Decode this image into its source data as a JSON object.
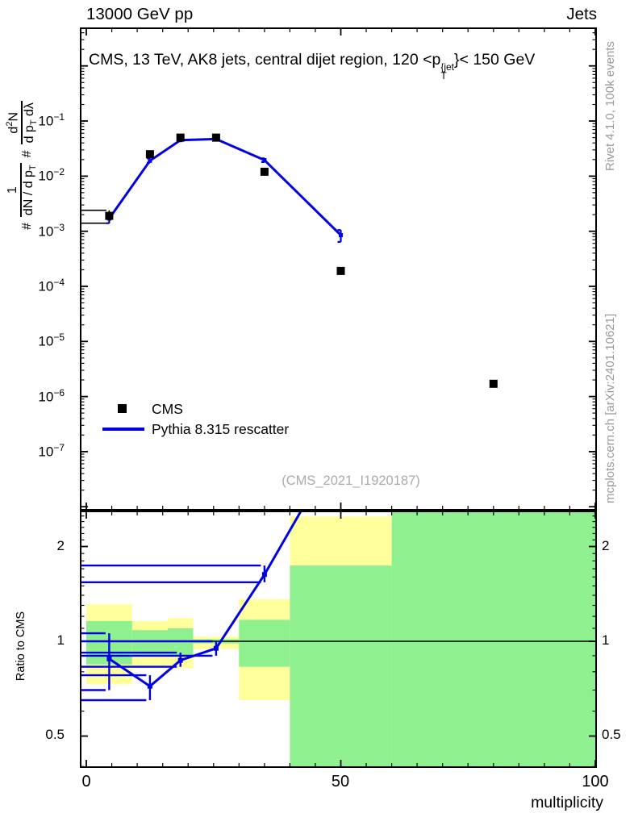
{
  "header": {
    "left": "13000 GeV pp",
    "right": "Jets"
  },
  "title": {
    "pre": "CMS, 13 TeV, AK8 jets, central dijet region, 120 <p",
    "sup": "{jet",
    "sub": "T",
    "post": "}< 150 GeV"
  },
  "ylabel": {
    "hash1": "#",
    "frac1_num": "1",
    "frac1_den_pre": "dN / d p",
    "frac1_den_sub": "T",
    "hash2": "#",
    "frac2_num_pre": "d",
    "frac2_num_sup": "2",
    "frac2_num_post": "N",
    "frac2_den_pre": "d p",
    "frac2_den_sub": "T",
    "frac2_den_post": " dλ"
  },
  "legend": {
    "entries": [
      {
        "marker": "square",
        "label": "CMS"
      },
      {
        "marker": "line",
        "label": "Pythia 8.315 rescatter"
      }
    ]
  },
  "watermark": "(CMS_2021_I1920187)",
  "side_notes": {
    "top_right": "Rivet 4.1.0,  100k events",
    "bottom_right": "mcplots.cern.ch [arXiv:2401.10621]"
  },
  "ratio_label": "Ratio to CMS",
  "xlabel": "multiplicity",
  "colors": {
    "mc_blue": "#0000e6",
    "band_yellow": "#ffff9c",
    "band_green": "#8ef08e",
    "gray_text": "#999999",
    "marker_black": "#000000"
  },
  "chart_data": {
    "type": "scatter+line with ratio panel",
    "title": "CMS, 13 TeV, AK8 jets, central dijet region, 120 < pT{jet} < 150 GeV",
    "xlabel": "multiplicity",
    "x_range": [
      -1.27,
      100.32
    ],
    "x_major_ticks": [
      0,
      50,
      100
    ],
    "x_tick_labels": [
      "0",
      "50",
      "100"
    ],
    "x_minor_step": 5,
    "main": {
      "yscale": "log",
      "y_range": [
        8.5e-09,
        5.0
      ],
      "y_decade_label_exponents": [
        -1,
        -2,
        -3,
        -4,
        -5,
        -6,
        -7
      ],
      "data_series": {
        "name": "CMS",
        "x": [
          4.5,
          12.5,
          18.5,
          25.5,
          35,
          50,
          80
        ],
        "y": [
          0.0019,
          0.025,
          0.05,
          0.05,
          0.012,
          0.00019,
          1.7e-06
        ],
        "yerr_lo": [
          0.0014,
          null,
          null,
          null,
          null,
          null,
          null
        ],
        "yerr_hi": [
          0.0024,
          null,
          null,
          null,
          null,
          null,
          null
        ]
      },
      "mc_series": {
        "name": "Pythia 8.315 rescatter",
        "x": [
          4.5,
          12.5,
          18.5,
          25.5,
          35,
          50
        ],
        "y": [
          0.0017,
          0.019,
          0.045,
          0.047,
          0.0195,
          0.00085
        ],
        "yerr_lo": [
          0.0014,
          0.0175,
          0.043,
          0.045,
          0.018,
          0.00064
        ],
        "yerr_hi": [
          0.0021,
          0.021,
          0.047,
          0.049,
          0.021,
          0.00105
        ]
      }
    },
    "ratio": {
      "yscale": "log",
      "y_range": [
        0.396,
        2.601
      ],
      "y_major_ticks": [
        0.5,
        1,
        2
      ],
      "y_tick_labels": [
        "0.5",
        "1",
        "2"
      ],
      "minor_tick_range": [
        0.4,
        2.6
      ],
      "minor_tick_step": 0.1,
      "reference_line": 1,
      "line": {
        "x": [
          4.5,
          12.5,
          18.5,
          25.5,
          35,
          50
        ],
        "y": [
          0.88,
          0.72,
          0.87,
          0.95,
          1.63,
          4.3
        ],
        "err_lo": [
          0.7,
          0.65,
          0.83,
          0.9,
          1.54,
          3.9
        ],
        "err_hi": [
          1.06,
          0.78,
          0.92,
          1.0,
          1.74,
          4.8
        ]
      },
      "bands": [
        {
          "x0": 0,
          "x1": 9,
          "yellow": [
            0.73,
            1.31
          ],
          "green": [
            0.845,
            1.16
          ]
        },
        {
          "x0": 9,
          "x1": 16,
          "yellow": [
            0.82,
            1.16
          ],
          "green": [
            0.9,
            1.085
          ]
        },
        {
          "x0": 16,
          "x1": 21,
          "yellow": [
            0.82,
            1.185
          ],
          "green": [
            0.9,
            1.1
          ]
        },
        {
          "x0": 21,
          "x1": 30,
          "yellow": [
            0.945,
            1.035
          ],
          "green": [
            0.985,
            1.015
          ]
        },
        {
          "x0": 30,
          "x1": 40,
          "yellow": [
            0.65,
            1.36
          ],
          "green": [
            0.83,
            1.17
          ]
        },
        {
          "x0": 40,
          "x1": 60,
          "yellow": [
            0.396,
            2.49
          ],
          "green": [
            0.396,
            1.74
          ]
        },
        {
          "x0": 60,
          "x1": 100,
          "yellow": null,
          "green": [
            0.396,
            2.601
          ]
        }
      ]
    }
  }
}
